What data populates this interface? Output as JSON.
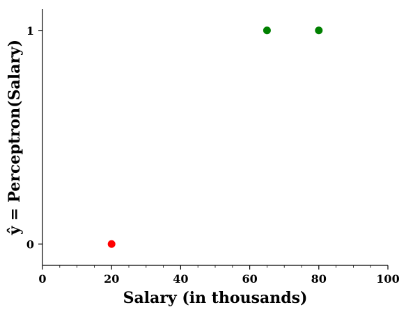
{
  "chart_data": {
    "type": "scatter",
    "title": "",
    "xlabel": "Salary (in thousands)",
    "ylabel": "ŷ = Perceptron(Salary)",
    "xlim": [
      0,
      100
    ],
    "ylim": [
      -0.1,
      1.1
    ],
    "grid": false,
    "x_ticks": [
      {
        "value": 0,
        "label": "0"
      },
      {
        "value": 20,
        "label": "20"
      },
      {
        "value": 40,
        "label": "40"
      },
      {
        "value": 60,
        "label": "60"
      },
      {
        "value": 80,
        "label": "80"
      },
      {
        "value": 100,
        "label": "100"
      }
    ],
    "y_ticks": [
      {
        "value": 0,
        "label": "0"
      },
      {
        "value": 1,
        "label": "1"
      }
    ],
    "points": [
      {
        "x": 20,
        "y": 0,
        "color": "#ff0000"
      },
      {
        "x": 65,
        "y": 1,
        "color": "#008000"
      },
      {
        "x": 80,
        "y": 1,
        "color": "#008000"
      }
    ]
  }
}
